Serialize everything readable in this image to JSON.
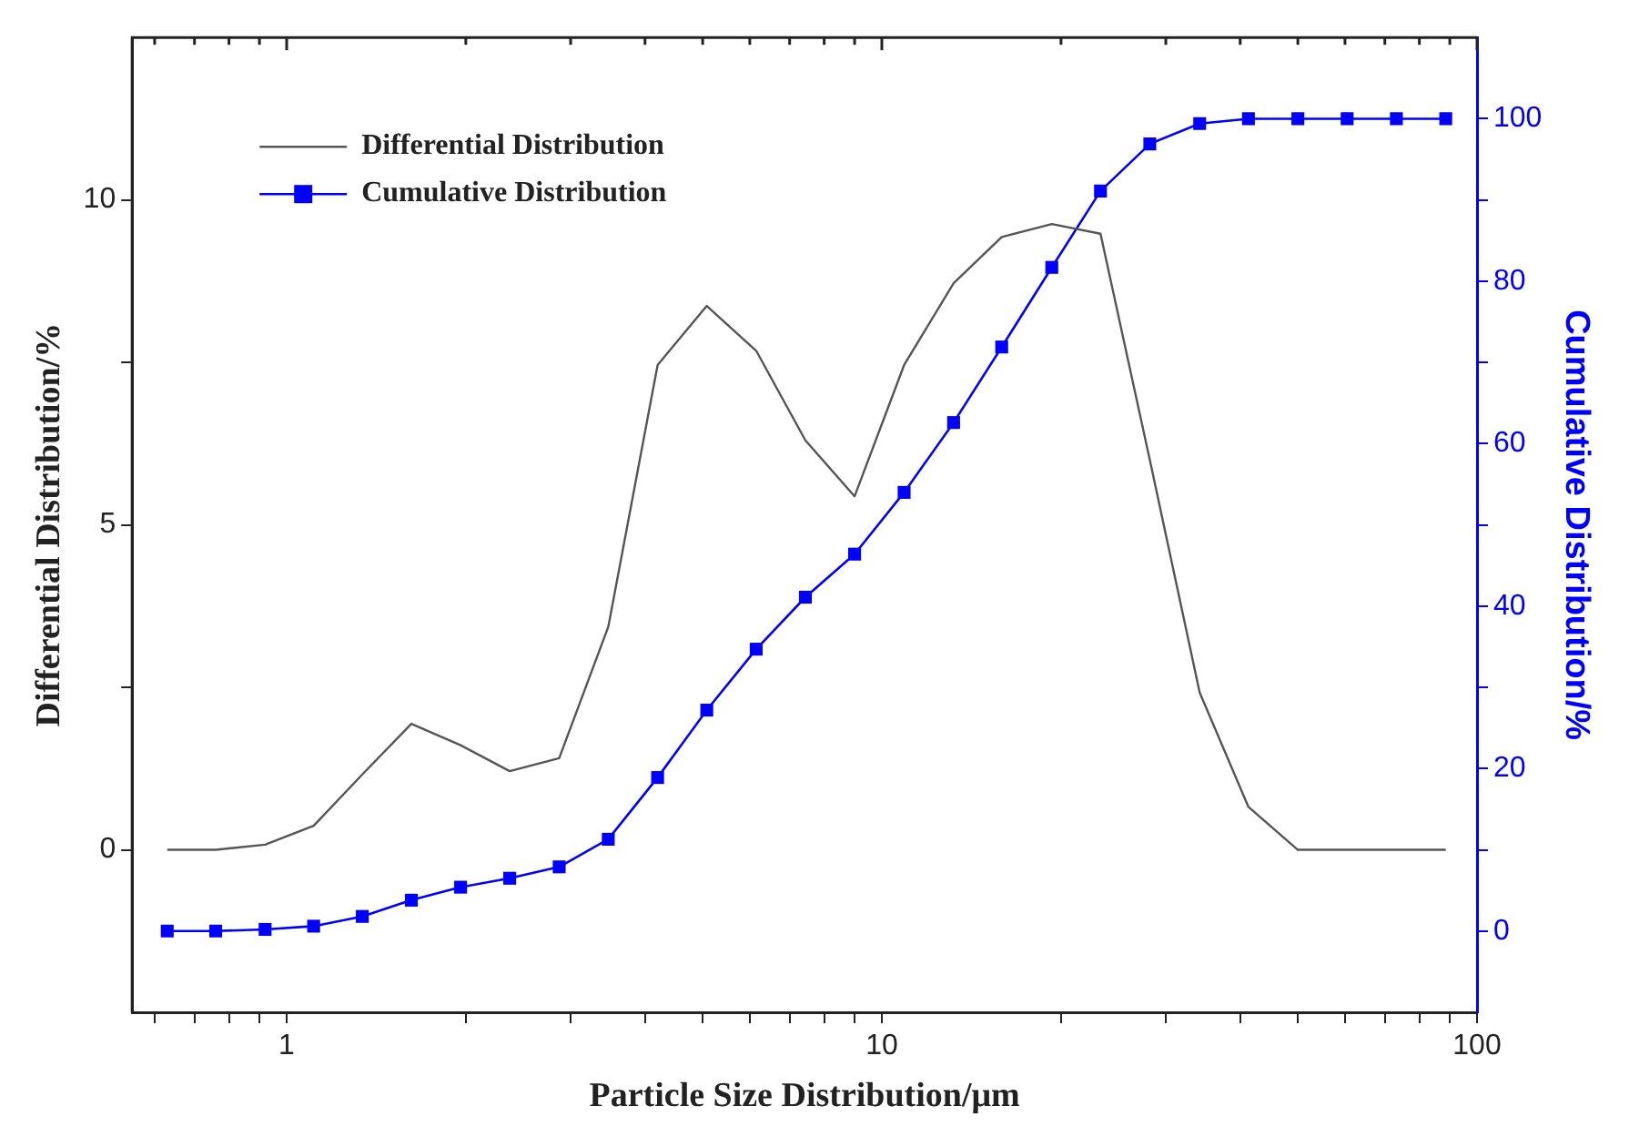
{
  "chart_data": {
    "type": "line",
    "xlabel": "Particle Size Distribution/μm",
    "ylabel": "Differential Distribution/%",
    "y2label": "Cumulative Distribution/%",
    "log": "x",
    "grid": false,
    "legend": "top left",
    "x": [
      0.63,
      0.76,
      0.92,
      1.11,
      1.34,
      1.62,
      1.96,
      2.37,
      2.87,
      3.47,
      4.2,
      5.08,
      6.15,
      7.44,
      9.0,
      10.9,
      13.2,
      15.9,
      19.3,
      23.3,
      28.2,
      34.2,
      41.3,
      50.0,
      60.5,
      73.2,
      88.6
    ],
    "xlim": [
      0.55,
      100
    ],
    "xticks": [
      {
        "value": 0.6,
        "label": null
      },
      {
        "value": 0.7,
        "label": null
      },
      {
        "value": 0.8,
        "label": null
      },
      {
        "value": 0.9,
        "label": null
      },
      1,
      {
        "value": 2,
        "label": null
      },
      {
        "value": 3,
        "label": null
      },
      {
        "value": 4,
        "label": null
      },
      {
        "value": 5,
        "label": null
      },
      {
        "value": 6,
        "label": null
      },
      {
        "value": 7,
        "label": null
      },
      {
        "value": 8,
        "label": null
      },
      {
        "value": 9,
        "label": null
      },
      10,
      {
        "value": 20,
        "label": null
      },
      {
        "value": 30,
        "label": null
      },
      {
        "value": 40,
        "label": null
      },
      {
        "value": 50,
        "label": null
      },
      {
        "value": 60,
        "label": null
      },
      {
        "value": 70,
        "label": null
      },
      {
        "value": 80,
        "label": null
      },
      {
        "value": 90,
        "label": null
      },
      100
    ],
    "ylim": [
      -2.5,
      12.5
    ],
    "yticks": [
      0,
      {
        "value": 2.5,
        "label": null
      },
      5,
      {
        "value": 7.5,
        "label": null
      },
      10
    ],
    "y2lim": [
      -10,
      110
    ],
    "y2ticks": [
      0,
      {
        "value": 10,
        "label": null
      },
      20,
      {
        "value": 30,
        "label": null
      },
      40,
      {
        "value": 50,
        "label": null
      },
      60,
      {
        "value": 70,
        "label": null
      },
      80,
      {
        "value": 90,
        "label": null
      },
      100
    ],
    "series": [
      {
        "name": "Differential Distribution",
        "color": "#555555",
        "marker": "none",
        "values": [
          0,
          0,
          0.08,
          0.37,
          1.16,
          1.94,
          1.61,
          1.21,
          1.41,
          3.43,
          7.46,
          8.37,
          7.68,
          6.3,
          5.44,
          7.46,
          8.72,
          9.43,
          9.63,
          9.48,
          6.0,
          2.42,
          0.66,
          0,
          0,
          0,
          0
        ]
      },
      {
        "name": "Cumulative Distribution",
        "color": "#0000ff",
        "marker": "square",
        "axis": "y2",
        "values": [
          0,
          0,
          0.2,
          0.6,
          1.8,
          3.8,
          5.4,
          6.5,
          7.9,
          11.3,
          18.9,
          27.2,
          34.7,
          41.1,
          46.4,
          54.0,
          62.6,
          71.9,
          81.7,
          91.1,
          96.9,
          99.4,
          100,
          100,
          100,
          100,
          100
        ]
      }
    ]
  }
}
